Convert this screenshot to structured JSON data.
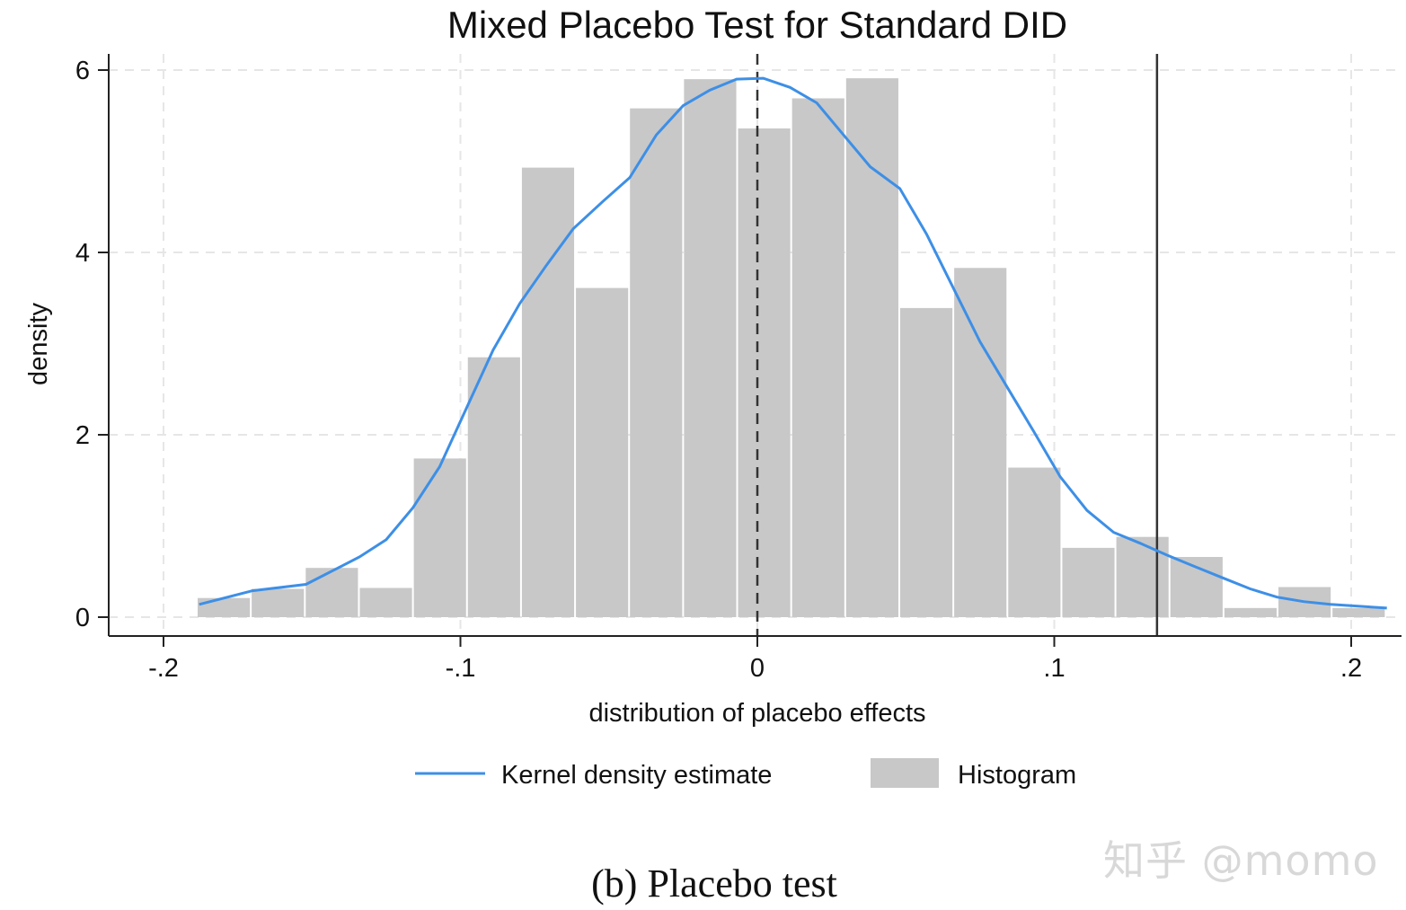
{
  "chart_data": {
    "type": "histogram+line",
    "title": "Mixed Placebo Test for Standard DID",
    "xlabel": "distribution of placebo effects",
    "ylabel": "density",
    "xlim": [
      -0.2,
      0.215
    ],
    "ylim": [
      0,
      6.2
    ],
    "xticks": [
      -0.2,
      -0.1,
      0,
      0.1,
      0.2
    ],
    "xtick_labels": [
      "-.2",
      "-.1",
      "0",
      ".1",
      ".2"
    ],
    "yticks": [
      0,
      2,
      4,
      6
    ],
    "ytick_labels": [
      "0",
      "2",
      "4",
      "6"
    ],
    "grid": true,
    "legend_position": "bottom",
    "histogram": {
      "name": "Histogram",
      "color": "#c8c8c8",
      "bin_start": -0.1885,
      "bin_width": 0.0182,
      "values": [
        0.21,
        0.31,
        0.54,
        0.32,
        1.74,
        2.85,
        4.93,
        3.61,
        5.58,
        5.9,
        5.36,
        5.69,
        5.91,
        3.39,
        3.83,
        1.64,
        0.76,
        0.88,
        0.66,
        0.1,
        0.33,
        0.1
      ]
    },
    "kde": {
      "name": "Kernel density estimate",
      "color": "#3d8fe6",
      "x": [
        -0.188,
        -0.17,
        -0.152,
        -0.134,
        -0.125,
        -0.116,
        -0.107,
        -0.098,
        -0.089,
        -0.08,
        -0.071,
        -0.062,
        -0.052,
        -0.043,
        -0.034,
        -0.025,
        -0.016,
        -0.007,
        0.002,
        0.011,
        0.02,
        0.029,
        0.038,
        0.048,
        0.057,
        0.066,
        0.075,
        0.084,
        0.093,
        0.102,
        0.111,
        0.12,
        0.129,
        0.138,
        0.147,
        0.156,
        0.166,
        0.175,
        0.184,
        0.193,
        0.212
      ],
      "y": [
        0.14,
        0.29,
        0.36,
        0.66,
        0.85,
        1.2,
        1.65,
        2.29,
        2.93,
        3.44,
        3.86,
        4.26,
        4.56,
        4.82,
        5.29,
        5.61,
        5.78,
        5.9,
        5.91,
        5.81,
        5.64,
        5.29,
        4.94,
        4.7,
        4.2,
        3.61,
        3.02,
        2.53,
        2.04,
        1.54,
        1.17,
        0.93,
        0.81,
        0.68,
        0.56,
        0.44,
        0.31,
        0.22,
        0.17,
        0.14,
        0.1
      ]
    },
    "reference_lines": [
      {
        "x": 0,
        "style": "dashed"
      },
      {
        "x": 0.1346,
        "style": "solid"
      }
    ]
  },
  "watermark": "知乎 @momo",
  "caption": "(b) Placebo test"
}
